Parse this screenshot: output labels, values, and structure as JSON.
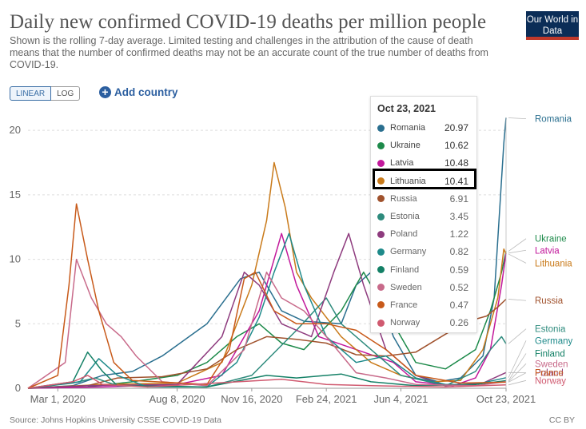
{
  "header": {
    "title": "Daily new confirmed COVID-19 deaths per million people",
    "subtitle": "Shown is the rolling 7-day average. Limited testing and challenges in the attribution of the cause of death means that the number of confirmed deaths may not be an accurate count of the true number of deaths from COVID-19.",
    "logo_text": "Our World in Data"
  },
  "controls": {
    "linear_label": "LINEAR",
    "log_label": "LOG",
    "add_country_label": "Add country"
  },
  "footer": {
    "source": "Source: Johns Hopkins University CSSE COVID-19 Data",
    "license": "CC BY"
  },
  "colors": {
    "accent": "#2c5fa0",
    "grid": "#dddddd"
  },
  "tooltip": {
    "date": "Oct 23, 2021",
    "rows": [
      {
        "name": "Romania",
        "value": "20.97",
        "color": "#2a6f8f"
      },
      {
        "name": "Ukraine",
        "value": "10.62",
        "color": "#1d8a4a"
      },
      {
        "name": "Latvia",
        "value": "10.48",
        "color": "#c2189b"
      },
      {
        "name": "Lithuania",
        "value": "10.41",
        "color": "#c97a1a"
      },
      {
        "name": "Russia",
        "value": "6.91",
        "color": "#a0522d"
      },
      {
        "name": "Estonia",
        "value": "3.45",
        "color": "#2e8b7d"
      },
      {
        "name": "Poland",
        "value": "1.22",
        "color": "#8e3b7e"
      },
      {
        "name": "Germany",
        "value": "0.82",
        "color": "#1e8a8a"
      },
      {
        "name": "Finland",
        "value": "0.59",
        "color": "#138066"
      },
      {
        "name": "Sweden",
        "value": "0.52",
        "color": "#c86a8a"
      },
      {
        "name": "France",
        "value": "0.47",
        "color": "#c85a1a"
      },
      {
        "name": "Norway",
        "value": "0.26",
        "color": "#d05a70"
      }
    ]
  },
  "chart_data": {
    "type": "line",
    "ylim": [
      0,
      21
    ],
    "yticks": [
      0,
      5,
      10,
      15,
      20
    ],
    "x_tick_labels": [
      "Mar 1, 2020",
      "Aug 8, 2020",
      "Nov 16, 2020",
      "Feb 24, 2021",
      "Jun 4, 2021",
      "Oct 23, 2021"
    ],
    "x_tick_days": [
      0,
      160,
      260,
      360,
      460,
      601
    ],
    "x_range_days": [
      -40,
      601
    ],
    "grid": true,
    "legend": "right-side labels",
    "series": [
      {
        "name": "Romania",
        "color": "#2a6f8f",
        "label_value": 20.9,
        "points": [
          [
            -40,
            0
          ],
          [
            20,
            0.2
          ],
          [
            60,
            1
          ],
          [
            100,
            1.3
          ],
          [
            140,
            2.5
          ],
          [
            200,
            5
          ],
          [
            245,
            8.5
          ],
          [
            270,
            9
          ],
          [
            300,
            6
          ],
          [
            330,
            5.2
          ],
          [
            380,
            5
          ],
          [
            400,
            8
          ],
          [
            420,
            9
          ],
          [
            450,
            4
          ],
          [
            480,
            1
          ],
          [
            510,
            0.5
          ],
          [
            540,
            0.8
          ],
          [
            570,
            2.5
          ],
          [
            585,
            7
          ],
          [
            598,
            19
          ],
          [
            601,
            20.97
          ]
        ]
      },
      {
        "name": "Ukraine",
        "color": "#1d8a4a",
        "label_value": 11.6,
        "points": [
          [
            -40,
            0
          ],
          [
            40,
            0.1
          ],
          [
            100,
            0.5
          ],
          [
            160,
            1
          ],
          [
            200,
            2
          ],
          [
            240,
            4
          ],
          [
            270,
            5
          ],
          [
            300,
            3.5
          ],
          [
            330,
            3
          ],
          [
            380,
            6
          ],
          [
            410,
            9
          ],
          [
            440,
            6
          ],
          [
            480,
            2
          ],
          [
            520,
            1.5
          ],
          [
            560,
            3
          ],
          [
            580,
            6
          ],
          [
            595,
            9
          ],
          [
            601,
            10.62
          ]
        ]
      },
      {
        "name": "Latvia",
        "color": "#c2189b",
        "label_value": 10.7,
        "points": [
          [
            -40,
            0
          ],
          [
            60,
            0.1
          ],
          [
            160,
            0.3
          ],
          [
            220,
            1
          ],
          [
            270,
            6
          ],
          [
            300,
            12
          ],
          [
            320,
            8
          ],
          [
            350,
            4
          ],
          [
            400,
            3
          ],
          [
            450,
            2
          ],
          [
            480,
            0.5
          ],
          [
            530,
            0.2
          ],
          [
            560,
            0.8
          ],
          [
            580,
            3
          ],
          [
            595,
            8
          ],
          [
            601,
            10.48
          ]
        ]
      },
      {
        "name": "Lithuania",
        "color": "#c97a1a",
        "label_value": 9.7,
        "points": [
          [
            -40,
            0
          ],
          [
            60,
            0.3
          ],
          [
            160,
            0.4
          ],
          [
            220,
            2
          ],
          [
            260,
            8
          ],
          [
            280,
            13
          ],
          [
            290,
            17.5
          ],
          [
            305,
            14
          ],
          [
            320,
            9
          ],
          [
            340,
            7
          ],
          [
            380,
            4
          ],
          [
            420,
            2
          ],
          [
            460,
            1
          ],
          [
            500,
            0.5
          ],
          [
            540,
            0.6
          ],
          [
            570,
            3
          ],
          [
            590,
            7
          ],
          [
            598,
            10.8
          ],
          [
            601,
            10.41
          ]
        ]
      },
      {
        "name": "Russia",
        "color": "#a0522d",
        "label_value": 6.8,
        "points": [
          [
            -40,
            0
          ],
          [
            40,
            0.2
          ],
          [
            80,
            0.8
          ],
          [
            140,
            0.9
          ],
          [
            200,
            1.5
          ],
          [
            240,
            3
          ],
          [
            280,
            4
          ],
          [
            320,
            3.8
          ],
          [
            360,
            3.5
          ],
          [
            400,
            2.6
          ],
          [
            440,
            2.5
          ],
          [
            480,
            2.8
          ],
          [
            520,
            4.2
          ],
          [
            550,
            5.2
          ],
          [
            575,
            5.6
          ],
          [
            590,
            6.3
          ],
          [
            601,
            6.91
          ]
        ]
      },
      {
        "name": "Estonia",
        "color": "#2e8b7d",
        "label_value": 4.6,
        "points": [
          [
            -40,
            0
          ],
          [
            20,
            0.4
          ],
          [
            50,
            0.8
          ],
          [
            80,
            0.2
          ],
          [
            200,
            0.1
          ],
          [
            260,
            1
          ],
          [
            320,
            4.5
          ],
          [
            360,
            7
          ],
          [
            380,
            5
          ],
          [
            420,
            3
          ],
          [
            460,
            1
          ],
          [
            520,
            0.2
          ],
          [
            560,
            1.3
          ],
          [
            580,
            3
          ],
          [
            595,
            4
          ],
          [
            601,
            3.45
          ]
        ]
      },
      {
        "name": "Poland",
        "color": "#8e3b7e",
        "label_value": 1.2,
        "points": [
          [
            -40,
            0
          ],
          [
            40,
            0.2
          ],
          [
            160,
            0.3
          ],
          [
            220,
            4
          ],
          [
            250,
            9
          ],
          [
            270,
            8
          ],
          [
            300,
            5
          ],
          [
            340,
            4
          ],
          [
            370,
            9
          ],
          [
            390,
            12
          ],
          [
            410,
            8
          ],
          [
            440,
            3
          ],
          [
            480,
            1
          ],
          [
            520,
            0.2
          ],
          [
            570,
            0.4
          ],
          [
            601,
            1.22
          ]
        ]
      },
      {
        "name": "Germany",
        "color": "#1e8a8a",
        "label_value": 3.7,
        "points": [
          [
            -40,
            0
          ],
          [
            30,
            0.5
          ],
          [
            55,
            2.3
          ],
          [
            80,
            1
          ],
          [
            120,
            0.1
          ],
          [
            200,
            0.1
          ],
          [
            240,
            2
          ],
          [
            270,
            5.5
          ],
          [
            290,
            9
          ],
          [
            310,
            12
          ],
          [
            330,
            8
          ],
          [
            360,
            4
          ],
          [
            400,
            2
          ],
          [
            440,
            2.5
          ],
          [
            480,
            0.8
          ],
          [
            520,
            0.3
          ],
          [
            560,
            0.3
          ],
          [
            601,
            0.82
          ]
        ]
      },
      {
        "name": "Finland",
        "color": "#138066",
        "label_value": 2.7,
        "points": [
          [
            -40,
            0
          ],
          [
            20,
            0.5
          ],
          [
            40,
            2.8
          ],
          [
            60,
            1.3
          ],
          [
            80,
            0.2
          ],
          [
            200,
            0.1
          ],
          [
            280,
            1
          ],
          [
            320,
            0.8
          ],
          [
            380,
            1.1
          ],
          [
            420,
            0.5
          ],
          [
            480,
            0.2
          ],
          [
            560,
            0.3
          ],
          [
            601,
            0.59
          ]
        ]
      },
      {
        "name": "Sweden",
        "color": "#c86a8a",
        "label_value": 1.9,
        "points": [
          [
            -40,
            0
          ],
          [
            10,
            2
          ],
          [
            25,
            10
          ],
          [
            45,
            7
          ],
          [
            65,
            5
          ],
          [
            85,
            4
          ],
          [
            105,
            2.5
          ],
          [
            140,
            0.5
          ],
          [
            200,
            0.2
          ],
          [
            250,
            3
          ],
          [
            280,
            9
          ],
          [
            300,
            7
          ],
          [
            330,
            6
          ],
          [
            360,
            4
          ],
          [
            400,
            1.2
          ],
          [
            440,
            0.8
          ],
          [
            480,
            0.3
          ],
          [
            560,
            0.2
          ],
          [
            601,
            0.52
          ]
        ]
      },
      {
        "name": "France",
        "color": "#c85a1a",
        "label_value": 1.2,
        "points": [
          [
            -40,
            0
          ],
          [
            0,
            1
          ],
          [
            15,
            8
          ],
          [
            25,
            14.3
          ],
          [
            40,
            10
          ],
          [
            55,
            6
          ],
          [
            75,
            2
          ],
          [
            100,
            0.6
          ],
          [
            200,
            0.3
          ],
          [
            230,
            3
          ],
          [
            250,
            8.5
          ],
          [
            265,
            9
          ],
          [
            290,
            6
          ],
          [
            320,
            5
          ],
          [
            360,
            5
          ],
          [
            400,
            4.5
          ],
          [
            440,
            3
          ],
          [
            480,
            1
          ],
          [
            540,
            0.4
          ],
          [
            601,
            0.47
          ]
        ]
      },
      {
        "name": "Norway",
        "color": "#d05a70",
        "label_value": 0.6,
        "points": [
          [
            -40,
            0
          ],
          [
            20,
            0.5
          ],
          [
            40,
            1
          ],
          [
            60,
            0.3
          ],
          [
            120,
            0.1
          ],
          [
            300,
            0.7
          ],
          [
            360,
            0.3
          ],
          [
            420,
            0.2
          ],
          [
            520,
            0.1
          ],
          [
            570,
            0.2
          ],
          [
            601,
            0.26
          ]
        ]
      }
    ]
  }
}
